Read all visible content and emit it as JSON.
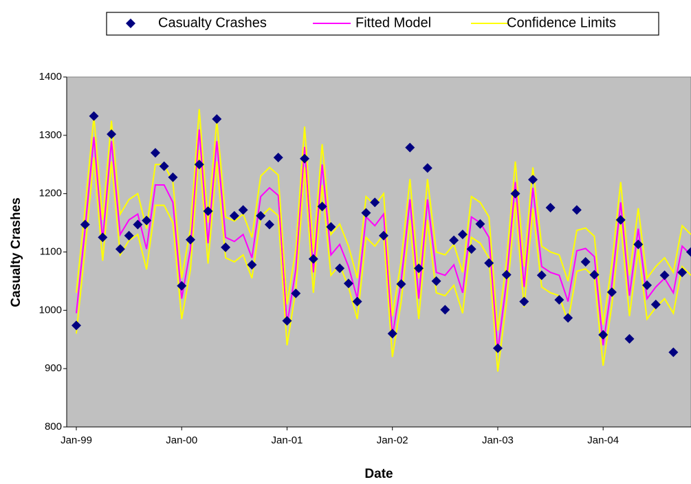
{
  "chart_data": {
    "type": "line",
    "ylabel": "Casualty Crashes",
    "xlabel": "Date",
    "categories": [
      "Jan-99",
      null,
      null,
      null,
      null,
      null,
      null,
      null,
      null,
      null,
      null,
      null,
      "Jan-00",
      null,
      null,
      null,
      null,
      null,
      null,
      null,
      null,
      null,
      null,
      null,
      "Jan-01",
      null,
      null,
      null,
      null,
      null,
      null,
      null,
      null,
      null,
      null,
      null,
      "Jan-02",
      null,
      null,
      null,
      null,
      null,
      null,
      null,
      null,
      null,
      null,
      null,
      "Jan-03",
      null,
      null,
      null,
      null,
      null,
      null,
      null,
      null,
      null,
      null,
      null,
      "Jan-04",
      null,
      null,
      null,
      null,
      null,
      null,
      null,
      null,
      null,
      null
    ],
    "series": [
      {
        "name": "Casualty Crashes",
        "color": "#000080",
        "marker": "diamond",
        "values": [
          974,
          1147,
          1333,
          1125,
          1302,
          1105,
          1128,
          1147,
          1154,
          1270,
          1247,
          1228,
          1042,
          1121,
          1250,
          1170,
          1328,
          1108,
          1162,
          1172,
          1078,
          1162,
          1147,
          1262,
          982,
          1029,
          1260,
          1088,
          1178,
          1143,
          1072,
          1046,
          1015,
          1167,
          1185,
          1128,
          960,
          1045,
          1279,
          1072,
          1244,
          1050,
          1001,
          1120,
          1130,
          1105,
          1148,
          1081,
          935,
          1061,
          1200,
          1015,
          1224,
          1060,
          1176,
          1018,
          987,
          1172,
          1083,
          1061,
          958,
          1031,
          1155,
          951,
          1113,
          1043,
          1010,
          1060,
          928,
          1065,
          1100
        ]
      },
      {
        "name": "Fitted Model",
        "color": "#ff00ff",
        "values": [
          995,
          1140,
          1297,
          1120,
          1290,
          1130,
          1155,
          1165,
          1105,
          1215,
          1215,
          1185,
          1020,
          1105,
          1310,
          1115,
          1290,
          1125,
          1118,
          1130,
          1090,
          1195,
          1210,
          1197,
          975,
          1070,
          1280,
          1065,
          1250,
          1095,
          1113,
          1075,
          1020,
          1160,
          1145,
          1165,
          955,
          1050,
          1190,
          1020,
          1190,
          1065,
          1060,
          1078,
          1030,
          1160,
          1150,
          1125,
          930,
          1050,
          1220,
          1040,
          1210,
          1075,
          1065,
          1060,
          1015,
          1102,
          1106,
          1092,
          940,
          1045,
          1185,
          1025,
          1140,
          1020,
          1040,
          1055,
          1030,
          1110,
          1095
        ]
      },
      {
        "name": "Confidence Limits",
        "color": "#ffff00",
        "upper": [
          1030,
          1175,
          1332,
          1155,
          1325,
          1165,
          1190,
          1200,
          1140,
          1250,
          1250,
          1220,
          1055,
          1140,
          1345,
          1150,
          1325,
          1160,
          1153,
          1165,
          1125,
          1230,
          1245,
          1232,
          1010,
          1105,
          1315,
          1100,
          1285,
          1130,
          1148,
          1110,
          1055,
          1195,
          1180,
          1200,
          990,
          1085,
          1225,
          1055,
          1225,
          1100,
          1095,
          1113,
          1065,
          1195,
          1185,
          1160,
          965,
          1085,
          1255,
          1075,
          1245,
          1110,
          1100,
          1095,
          1050,
          1137,
          1141,
          1127,
          975,
          1080,
          1220,
          1060,
          1175,
          1055,
          1075,
          1090,
          1065,
          1145,
          1130
        ],
        "lower": [
          960,
          1105,
          1262,
          1085,
          1255,
          1095,
          1120,
          1130,
          1070,
          1180,
          1180,
          1150,
          985,
          1070,
          1275,
          1080,
          1255,
          1090,
          1083,
          1095,
          1055,
          1160,
          1175,
          1162,
          940,
          1035,
          1245,
          1030,
          1215,
          1060,
          1078,
          1040,
          985,
          1125,
          1110,
          1130,
          920,
          1015,
          1155,
          985,
          1155,
          1030,
          1025,
          1043,
          995,
          1125,
          1115,
          1090,
          895,
          1015,
          1185,
          1005,
          1175,
          1040,
          1030,
          1025,
          980,
          1067,
          1071,
          1057,
          905,
          1010,
          1150,
          990,
          1105,
          985,
          1005,
          1020,
          995,
          1075,
          1060
        ]
      }
    ],
    "ylim": [
      800,
      1400
    ],
    "yticks": [
      800,
      900,
      1000,
      1100,
      1200,
      1300,
      1400
    ],
    "plot_background": "#c0c0c0",
    "legend": "top"
  }
}
